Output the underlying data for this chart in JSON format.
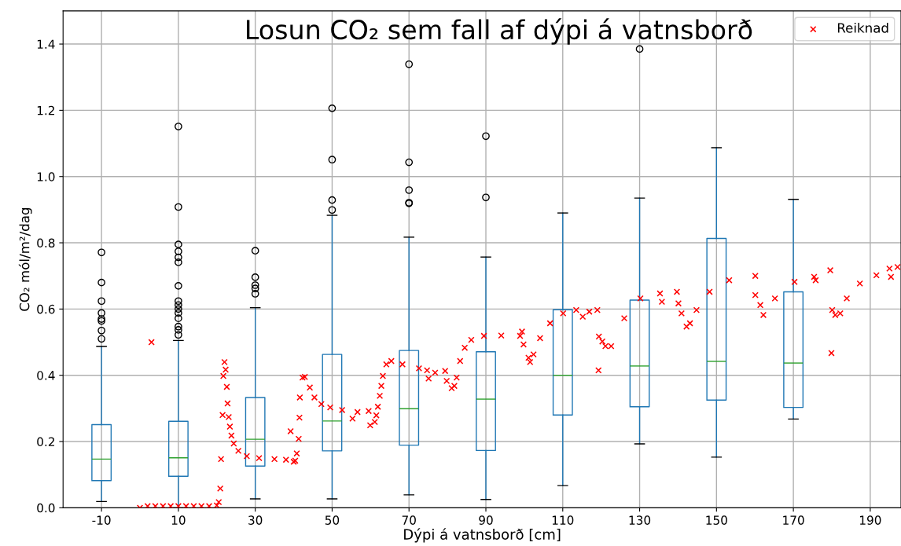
{
  "chart_data": {
    "type": "box",
    "title": "Losun CO₂ sem fall af dýpi á vatnsborð",
    "xlabel": "Dýpi á vatnsborð [cm]",
    "ylabel": "CO₂ mól/m²/dag",
    "xlim": [
      -20,
      198
    ],
    "ylim": [
      0,
      1.5
    ],
    "xticks": [
      -10,
      10,
      30,
      50,
      70,
      90,
      110,
      130,
      150,
      170,
      190
    ],
    "yticks": [
      {
        "value": 0,
        "label": "0.0"
      },
      0.2,
      0.4,
      0.6,
      0.8,
      {
        "value": 1,
        "label": "1.0"
      },
      1.2,
      1.4
    ],
    "grid": true,
    "legend": "top right",
    "series": [
      {
        "color": "#1f77b4",
        "x": [
          -10,
          10,
          30,
          50,
          70,
          90,
          110,
          130,
          150,
          170
        ],
        "boxes": [
          {
            "low": 0.019,
            "q1": 0.082,
            "median": 0.147,
            "q3": 0.251,
            "high": 0.487,
            "outliers": [
              0.51,
              0.535,
              0.564,
              0.57,
              0.588,
              0.624,
              0.68,
              0.771
            ]
          },
          {
            "low": 0,
            "q1": 0.095,
            "median": 0.151,
            "q3": 0.261,
            "high": 0.505,
            "outliers": [
              0.522,
              0.537,
              0.547,
              0.572,
              0.588,
              0.6,
              0.612,
              0.624,
              0.67,
              0.741,
              0.756,
              0.774,
              0.795,
              0.908,
              1.151
            ]
          },
          {
            "low": 0.027,
            "q1": 0.126,
            "median": 0.207,
            "q3": 0.333,
            "high": 0.604,
            "outliers": [
              0.646,
              0.662,
              0.672,
              0.696,
              0.776
            ]
          },
          {
            "low": 0.027,
            "q1": 0.172,
            "median": 0.262,
            "q3": 0.463,
            "high": 0.883,
            "outliers": [
              0.899,
              0.929,
              1.051,
              1.206
            ]
          },
          {
            "low": 0.039,
            "q1": 0.189,
            "median": 0.299,
            "q3": 0.475,
            "high": 0.817,
            "outliers": [
              0.919,
              0.921,
              0.959,
              1.043,
              1.339
            ]
          },
          {
            "low": 0.025,
            "q1": 0.173,
            "median": 0.328,
            "q3": 0.471,
            "high": 0.757,
            "outliers": [
              0.937,
              1.122
            ]
          },
          {
            "low": 0.067,
            "q1": 0.28,
            "median": 0.4,
            "q3": 0.598,
            "high": 0.89
          },
          {
            "low": 0.193,
            "q1": 0.305,
            "median": 0.428,
            "q3": 0.627,
            "high": 0.935,
            "outliers": [
              1.385
            ]
          },
          {
            "low": 0.153,
            "q1": 0.325,
            "median": 0.442,
            "q3": 0.813,
            "high": 1.087
          },
          {
            "low": 0.268,
            "q1": 0.303,
            "median": 0.437,
            "q3": 0.652,
            "high": 0.931
          }
        ]
      },
      {
        "type": "scatter",
        "name": "Reiknad",
        "color": "#ff0000",
        "marker": "cross",
        "x": [
          0,
          2,
          3,
          4,
          6,
          8,
          10,
          12,
          14,
          16,
          18,
          20,
          20.5,
          20.9,
          21.1,
          21.5,
          21.7,
          22.0,
          22.3,
          22.6,
          22.8,
          23.1,
          23.4,
          23.8,
          24.4,
          25.6,
          27.8,
          31,
          35,
          38,
          39.2,
          40,
          40.4,
          40.8,
          41.3,
          41.5,
          41.6,
          42.3,
          42.9,
          44.2,
          45.4,
          47.2,
          49.5,
          52.6,
          55.3,
          56.6,
          59.5,
          59.9,
          61.1,
          61.5,
          61.9,
          62.4,
          62.8,
          63.2,
          64.1,
          65.4,
          68.3,
          72.6,
          74.7,
          75.1,
          76.8,
          79.4,
          79.8,
          81.1,
          81.8,
          82.4,
          83.3,
          84.5,
          86.2,
          89.5,
          94,
          98.9,
          99.4,
          99.8,
          101.1,
          101.5,
          102.4,
          104.1,
          106.7,
          110.1,
          113.5,
          115.2,
          116.9,
          119,
          119.3,
          119.4,
          120.3,
          121.1,
          122.6,
          126,
          130.2,
          135.3,
          135.8,
          139.7,
          140.1,
          140.9,
          142.2,
          143.1,
          144.8,
          148.2,
          153.3,
          160.1,
          160.1,
          161.4,
          162.2,
          165.2,
          170.3,
          175.4,
          175.8,
          179.6,
          179.9,
          180.1,
          180.9,
          182.2,
          183.9,
          187.3,
          191.6,
          195,
          195.4,
          197.1
        ],
        "values": [
          0.0,
          0.005,
          0.5,
          0.005,
          0.005,
          0.005,
          0.005,
          0.005,
          0.005,
          0.005,
          0.005,
          0.007,
          0.017,
          0.058,
          0.147,
          0.28,
          0.398,
          0.44,
          0.417,
          0.365,
          0.315,
          0.274,
          0.245,
          0.218,
          0.194,
          0.172,
          0.156,
          0.15,
          0.147,
          0.145,
          0.231,
          0.139,
          0.142,
          0.164,
          0.208,
          0.272,
          0.333,
          0.393,
          0.395,
          0.363,
          0.333,
          0.313,
          0.303,
          0.295,
          0.269,
          0.289,
          0.292,
          0.249,
          0.259,
          0.279,
          0.305,
          0.338,
          0.368,
          0.398,
          0.433,
          0.443,
          0.433,
          0.421,
          0.415,
          0.39,
          0.408,
          0.413,
          0.383,
          0.361,
          0.368,
          0.393,
          0.443,
          0.483,
          0.507,
          0.519,
          0.52,
          0.519,
          0.532,
          0.493,
          0.453,
          0.44,
          0.463,
          0.512,
          0.557,
          0.587,
          0.597,
          0.577,
          0.592,
          0.597,
          0.415,
          0.517,
          0.502,
          0.488,
          0.488,
          0.572,
          0.632,
          0.647,
          0.622,
          0.652,
          0.617,
          0.587,
          0.547,
          0.557,
          0.597,
          0.652,
          0.687,
          0.7,
          0.642,
          0.612,
          0.582,
          0.632,
          0.682,
          0.697,
          0.687,
          0.717,
          0.467,
          0.597,
          0.582,
          0.587,
          0.632,
          0.677,
          0.702,
          0.722,
          0.697,
          0.727
        ]
      }
    ]
  }
}
